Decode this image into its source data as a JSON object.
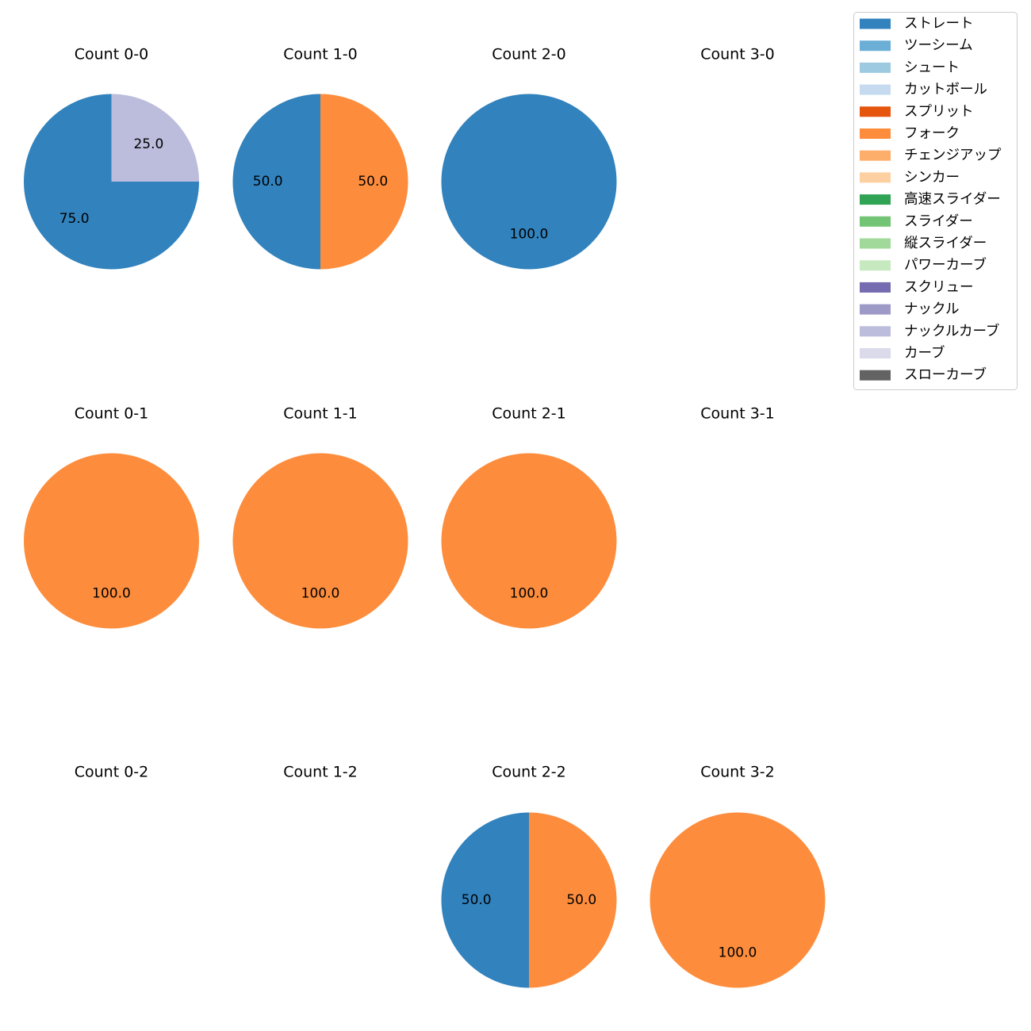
{
  "chart_data": {
    "type": "pie",
    "legend": {
      "placement": "top-right",
      "entries": [
        {
          "label": "ストレート",
          "color": "#3182bd"
        },
        {
          "label": "ツーシーム",
          "color": "#6baed6"
        },
        {
          "label": "シュート",
          "color": "#9ecae1"
        },
        {
          "label": "カットボール",
          "color": "#c6dbef"
        },
        {
          "label": "スプリット",
          "color": "#e6550d"
        },
        {
          "label": "フォーク",
          "color": "#fd8d3c"
        },
        {
          "label": "チェンジアップ",
          "color": "#fdae6b"
        },
        {
          "label": "シンカー",
          "color": "#fdd0a2"
        },
        {
          "label": "高速スライダー",
          "color": "#31a354"
        },
        {
          "label": "スライダー",
          "color": "#74c476"
        },
        {
          "label": "縦スライダー",
          "color": "#a1d99b"
        },
        {
          "label": "パワーカーブ",
          "color": "#c7e9c0"
        },
        {
          "label": "スクリュー",
          "color": "#756bb1"
        },
        {
          "label": "ナックル",
          "color": "#9e9ac8"
        },
        {
          "label": "ナックルカーブ",
          "color": "#bcbddc"
        },
        {
          "label": "カーブ",
          "color": "#dadaeb"
        },
        {
          "label": "スローカーブ",
          "color": "#636363"
        }
      ]
    },
    "subplots": [
      {
        "title": "Count 0-0",
        "slices": [
          {
            "pitch": "ストレート",
            "value": 75.0,
            "label": "75.0"
          },
          {
            "pitch": "ナックルカーブ",
            "value": 25.0,
            "label": "25.0"
          }
        ]
      },
      {
        "title": "Count 1-0",
        "slices": [
          {
            "pitch": "ストレート",
            "value": 50.0,
            "label": "50.0"
          },
          {
            "pitch": "フォーク",
            "value": 50.0,
            "label": "50.0"
          }
        ]
      },
      {
        "title": "Count 2-0",
        "slices": [
          {
            "pitch": "ストレート",
            "value": 100.0,
            "label": "100.0"
          }
        ]
      },
      {
        "title": "Count 3-0",
        "slices": []
      },
      {
        "title": "Count 0-1",
        "slices": [
          {
            "pitch": "フォーク",
            "value": 100.0,
            "label": "100.0"
          }
        ]
      },
      {
        "title": "Count 1-1",
        "slices": [
          {
            "pitch": "フォーク",
            "value": 100.0,
            "label": "100.0"
          }
        ]
      },
      {
        "title": "Count 2-1",
        "slices": [
          {
            "pitch": "フォーク",
            "value": 100.0,
            "label": "100.0"
          }
        ]
      },
      {
        "title": "Count 3-1",
        "slices": []
      },
      {
        "title": "Count 0-2",
        "slices": []
      },
      {
        "title": "Count 1-2",
        "slices": []
      },
      {
        "title": "Count 2-2",
        "slices": [
          {
            "pitch": "ストレート",
            "value": 50.0,
            "label": "50.0"
          },
          {
            "pitch": "フォーク",
            "value": 50.0,
            "label": "50.0"
          }
        ]
      },
      {
        "title": "Count 3-2",
        "slices": [
          {
            "pitch": "フォーク",
            "value": 100.0,
            "label": "100.0"
          }
        ]
      }
    ]
  }
}
